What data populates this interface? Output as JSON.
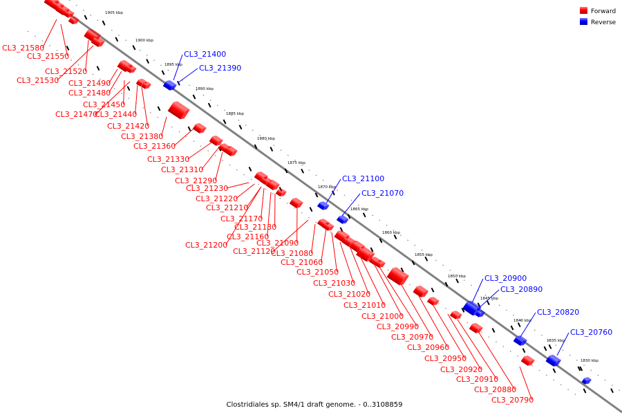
{
  "caption": "Clostridiales sp. SM4/1 draft genome. - 0..3108859",
  "colors": {
    "forward": "#ff0000",
    "reverse": "#0000ff",
    "axis": "#808080"
  },
  "legend": [
    {
      "label": "Forward",
      "strand": "forward"
    },
    {
      "label": "Reverse",
      "strand": "reverse"
    }
  ],
  "ruler": [
    "1905 kbp",
    "1900 kbp",
    "1895 kbp",
    "1890 kbp",
    "1885 kbp",
    "1880 kbp",
    "1875 kbp",
    "1870 kbp",
    "1865 kbp",
    "1860 kbp",
    "1855 kbp",
    "1850 kbp",
    "1845 kbp",
    "1840 kbp",
    "1835 kbp",
    "1830 kbp"
  ],
  "forward_genes": [
    "CL3_21580",
    "CL3_21550",
    "CL3_21520",
    "CL3_21530",
    "CL3_21490",
    "CL3_21480",
    "CL3_21450",
    "CL3_21470",
    "CL3_21440",
    "CL3_21420",
    "CL3_21380",
    "CL3_21360",
    "CL3_21330",
    "CL3_21310",
    "CL3_21290",
    "CL3_21230",
    "CL3_21220",
    "CL3_21210",
    "CL3_21170",
    "CL3_21130",
    "CL3_21160",
    "CL3_21200",
    "CL3_21090",
    "CL3_21120",
    "CL3_21080",
    "CL3_21060",
    "CL3_21050",
    "CL3_21030",
    "CL3_21020",
    "CL3_21010",
    "CL3_21000",
    "CL3_20990",
    "CL3_20970",
    "CL3_20960",
    "CL3_20950",
    "CL3_20920",
    "CL3_20910",
    "CL3_20880",
    "CL3_20790"
  ],
  "reverse_genes": [
    "CL3_21400",
    "CL3_21390",
    "CL3_21100",
    "CL3_21070",
    "CL3_20900",
    "CL3_20890",
    "CL3_20820",
    "CL3_20760"
  ]
}
